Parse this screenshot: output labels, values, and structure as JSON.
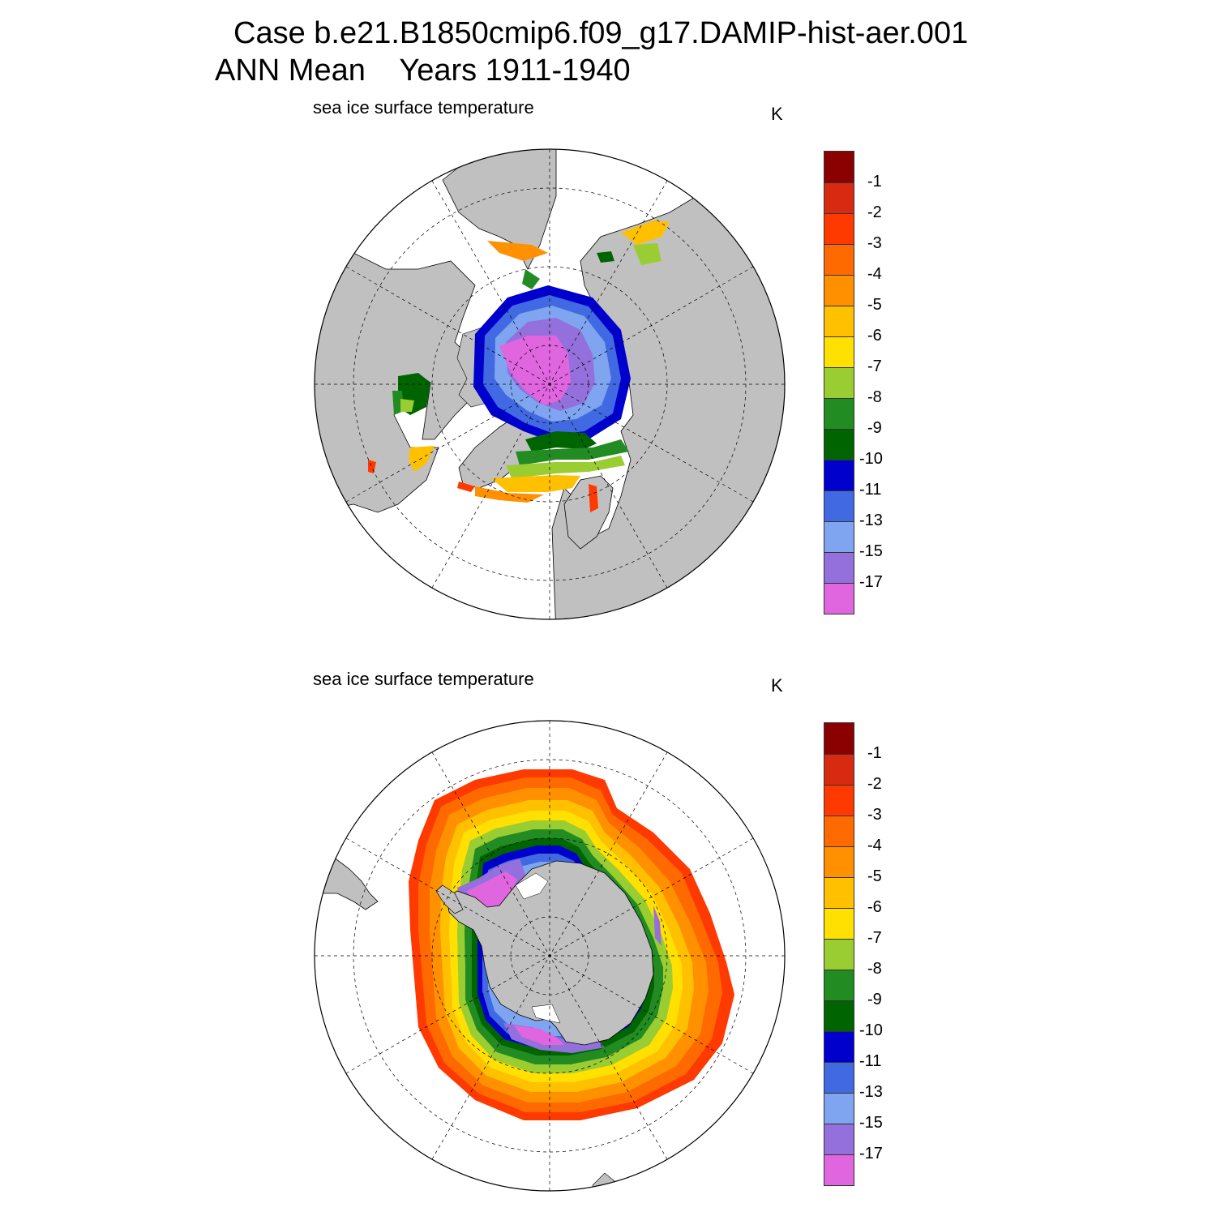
{
  "figure": {
    "title_case": "Case b.e21.B1850cmip6.f09_g17.DAMIP-hist-aer.001",
    "title_period": "ANN Mean    Years 1911-1940"
  },
  "panels": [
    {
      "id": "north",
      "hemisphere": "Northern",
      "label": "sea ice surface temperature",
      "units": "K"
    },
    {
      "id": "south",
      "hemisphere": "Southern",
      "label": "sea ice surface temperature",
      "units": "K"
    }
  ],
  "colorbar": {
    "colors": [
      "#e066e0",
      "#9370db",
      "#7fa5f0",
      "#4169e1",
      "#0000cd",
      "#006400",
      "#228b22",
      "#9acd32",
      "#ffe000",
      "#ffc000",
      "#ff9000",
      "#ff6a00",
      "#ff3a00",
      "#d82a10",
      "#8b0000"
    ],
    "labels": [
      "-17",
      "-15",
      "-13",
      "-11",
      "-10",
      "-9",
      "-8",
      "-7",
      "-6",
      "-5",
      "-4",
      "-3",
      "-2",
      "-1"
    ]
  },
  "map_style": {
    "land_color": "#c0c0c0",
    "ocean_color": "#ffffff",
    "coast_color": "#000000",
    "grid_style": "dashed"
  }
}
